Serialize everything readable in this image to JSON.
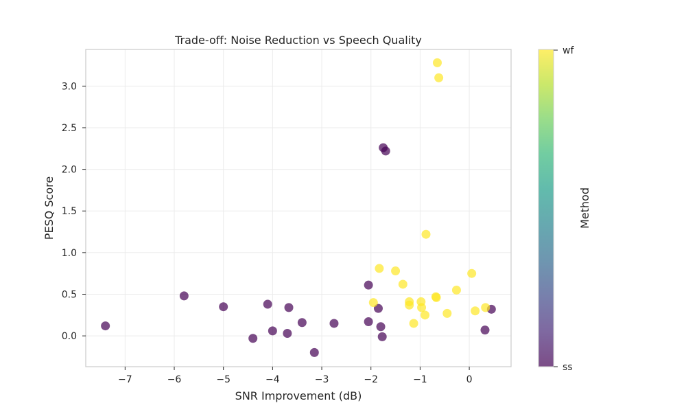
{
  "chart_data": {
    "type": "scatter",
    "title": "Trade-off: Noise Reduction vs Speech Quality",
    "xlabel": "SNR Improvement (dB)",
    "ylabel": "PESQ Score",
    "xlim": [
      -7.8,
      0.85
    ],
    "ylim": [
      -0.37,
      3.44
    ],
    "xticks": [
      -7,
      -6,
      -5,
      -4,
      -3,
      -2,
      -1,
      0
    ],
    "xtick_labels": [
      "−7",
      "−6",
      "−5",
      "−4",
      "−3",
      "−2",
      "−1",
      "0"
    ],
    "yticks": [
      0.0,
      0.5,
      1.0,
      1.5,
      2.0,
      2.5,
      3.0
    ],
    "ytick_labels": [
      "0.0",
      "0.5",
      "1.0",
      "1.5",
      "2.0",
      "2.5",
      "3.0"
    ],
    "grid": true,
    "marker_alpha": 0.7,
    "colorbar": {
      "label": "Method",
      "colormap": "viridis",
      "tick_labels": [
        "ss",
        "wf"
      ]
    },
    "series": [
      {
        "method": "ss",
        "color": "#440154",
        "points": [
          [
            -7.4,
            0.12
          ],
          [
            -5.8,
            0.48
          ],
          [
            -5.0,
            0.35
          ],
          [
            -4.4,
            -0.03
          ],
          [
            -4.1,
            0.38
          ],
          [
            -4.0,
            0.06
          ],
          [
            -3.7,
            0.03
          ],
          [
            -3.67,
            0.34
          ],
          [
            -3.4,
            0.16
          ],
          [
            -3.15,
            -0.2
          ],
          [
            -2.75,
            0.15
          ],
          [
            -2.05,
            0.61
          ],
          [
            -2.05,
            0.17
          ],
          [
            -1.85,
            0.33
          ],
          [
            -1.8,
            0.11
          ],
          [
            -1.77,
            -0.01
          ],
          [
            -1.75,
            2.26
          ],
          [
            -1.7,
            2.22
          ],
          [
            0.32,
            0.07
          ],
          [
            0.45,
            0.32
          ]
        ]
      },
      {
        "method": "wf",
        "color": "#fde725",
        "points": [
          [
            -0.65,
            3.28
          ],
          [
            -0.62,
            3.1
          ],
          [
            -0.88,
            1.22
          ],
          [
            -1.83,
            0.81
          ],
          [
            -1.5,
            0.78
          ],
          [
            -1.35,
            0.62
          ],
          [
            -1.95,
            0.4
          ],
          [
            -1.22,
            0.41
          ],
          [
            -1.22,
            0.37
          ],
          [
            -0.98,
            0.41
          ],
          [
            -0.97,
            0.34
          ],
          [
            -0.68,
            0.47
          ],
          [
            -0.67,
            0.46
          ],
          [
            -0.9,
            0.25
          ],
          [
            -1.13,
            0.15
          ],
          [
            -0.45,
            0.27
          ],
          [
            -0.26,
            0.55
          ],
          [
            0.05,
            0.75
          ],
          [
            0.12,
            0.3
          ],
          [
            0.33,
            0.34
          ]
        ]
      }
    ]
  }
}
